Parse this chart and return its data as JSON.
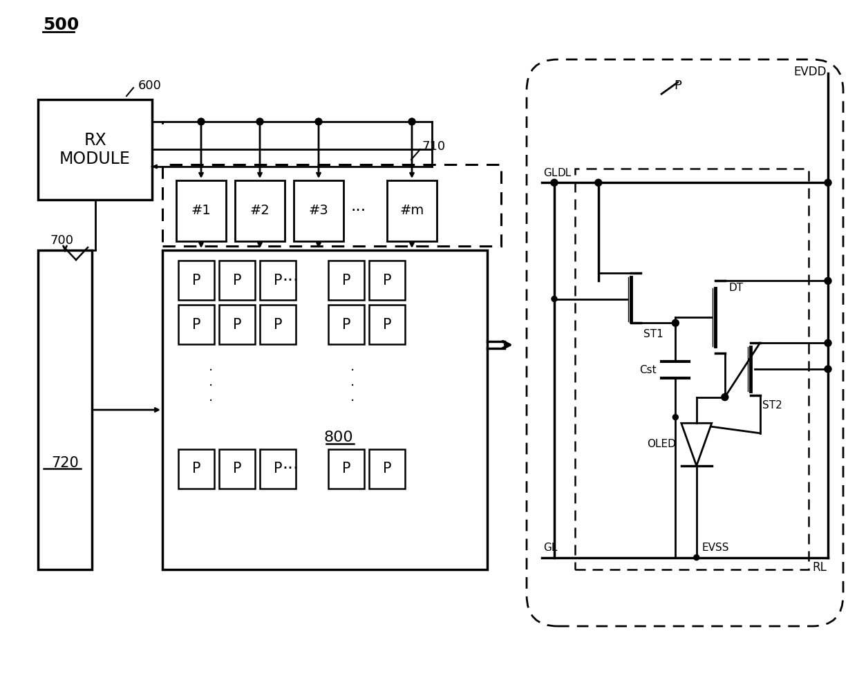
{
  "bg_color": "#ffffff",
  "label_500": "500",
  "label_600": "600",
  "label_700": "700",
  "label_710": "710",
  "label_720": "720",
  "label_800": "800",
  "rx_module_text": "RX\nMODULE",
  "pixel_label": "P",
  "sc_labels": [
    "#1",
    "#2",
    "#3",
    "#m"
  ]
}
